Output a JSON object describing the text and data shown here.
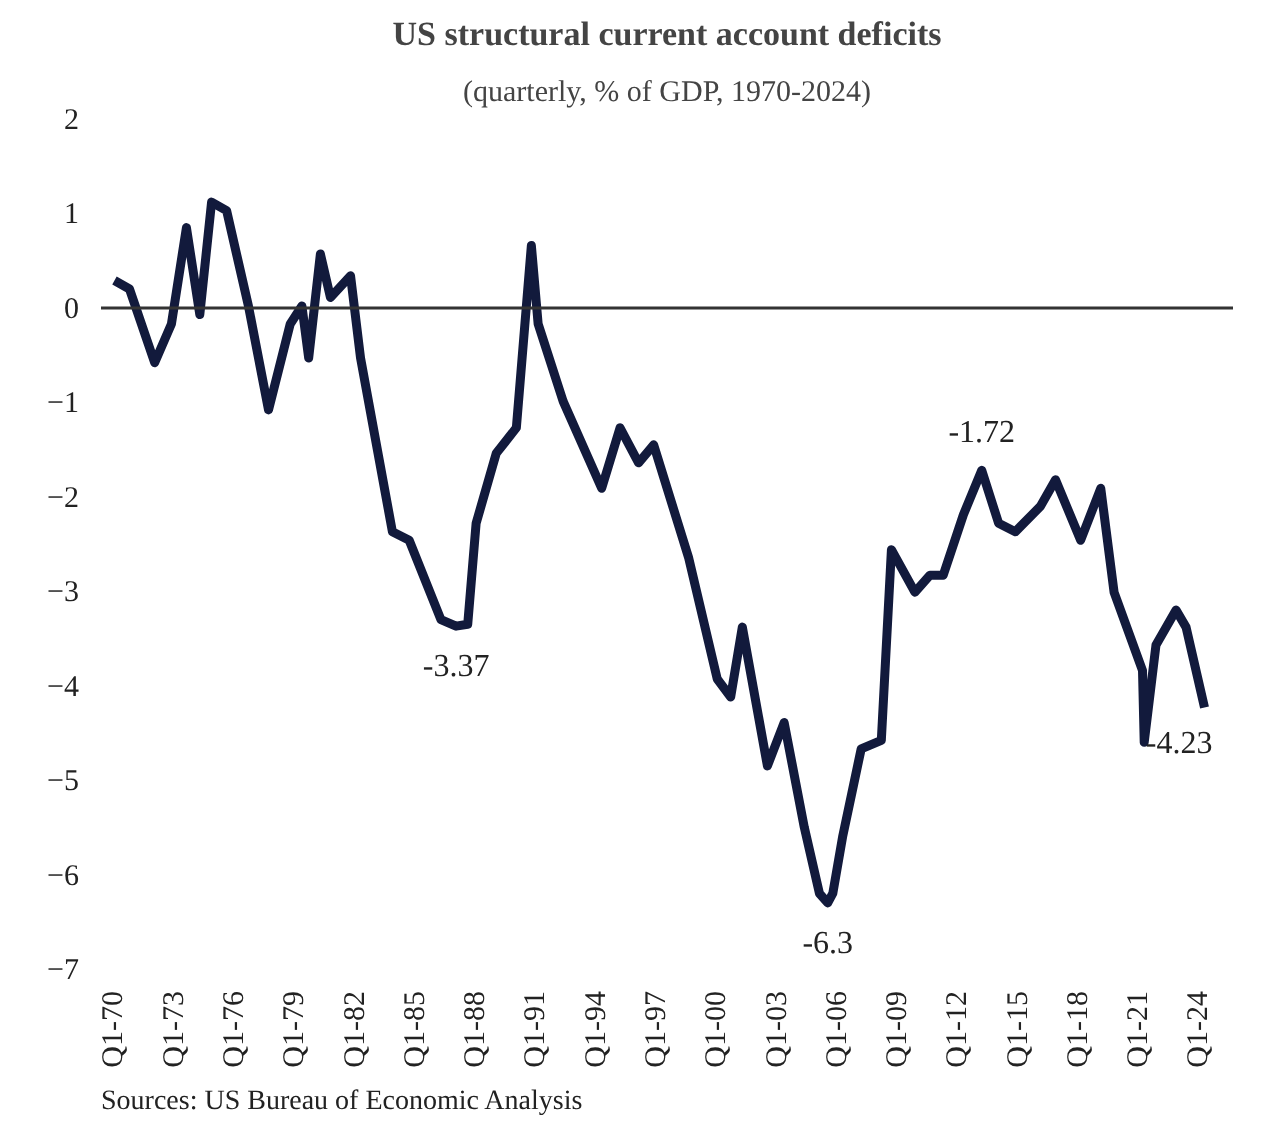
{
  "chart_data": {
    "type": "line",
    "title": "US structural current account deficits",
    "subtitle": "(quarterly, % of GDP, 1970-2024)",
    "x": [
      "1970-01",
      "1970-10",
      "1972-01",
      "1972-11",
      "1973-08",
      "1974-04",
      "1974-11",
      "1975-08",
      "1976-09",
      "1977-09",
      "1978-10",
      "1979-05",
      "1979-09",
      "1980-04",
      "1980-10",
      "1981-10",
      "1982-04",
      "1983-11",
      "1984-09",
      "1986-04",
      "1987-01",
      "1987-08",
      "1988-01",
      "1989-01",
      "1990-01",
      "1990-10",
      "1991-02",
      "1992-05",
      "1994-04",
      "1995-03",
      "1996-02",
      "1996-11",
      "1998-08",
      "2000-01",
      "2000-09",
      "2001-04",
      "2002-07",
      "2003-05",
      "2004-05",
      "2005-02",
      "2005-07",
      "2005-10",
      "2006-04",
      "2007-03",
      "2008-03",
      "2008-09",
      "2009-11",
      "2010-08",
      "2011-04",
      "2012-04",
      "2013-03",
      "2014-01",
      "2014-11",
      "2016-02",
      "2016-11",
      "2018-02",
      "2019-02",
      "2019-10",
      "2021-03",
      "2021-04",
      "2021-11",
      "2022-11",
      "2023-05",
      "2024-04"
    ],
    "series": [
      {
        "color": "#121a3c",
        "values": [
          0.29,
          0.2,
          -0.58,
          -0.17,
          0.85,
          -0.07,
          1.12,
          1.03,
          0.02,
          -1.08,
          -0.17,
          0.02,
          -0.53,
          0.57,
          0.11,
          0.34,
          -0.53,
          -2.37,
          -2.46,
          -3.3,
          -3.37,
          -3.35,
          -2.28,
          -1.54,
          -1.27,
          0.66,
          -0.17,
          -0.99,
          -1.91,
          -1.27,
          -1.64,
          -1.45,
          -2.65,
          -3.93,
          -4.12,
          -3.38,
          -4.85,
          -4.39,
          -5.5,
          -6.2,
          -6.3,
          -6.2,
          -5.59,
          -4.67,
          -4.58,
          -2.56,
          -3.01,
          -2.83,
          -2.83,
          -2.19,
          -1.72,
          -2.28,
          -2.37,
          -2.1,
          -1.82,
          -2.46,
          -1.91,
          -3.01,
          -3.84,
          -4.6,
          -3.57,
          -3.2,
          -3.38,
          -4.23
        ]
      }
    ],
    "xlim": [
      "1969-05",
      "2025-09"
    ],
    "ylim": [
      -7,
      2
    ],
    "xticks": [
      {
        "value": "1970-01",
        "label": "Q1-70"
      },
      {
        "value": "1973-01",
        "label": "Q1-73"
      },
      {
        "value": "1976-01",
        "label": "Q1-76"
      },
      {
        "value": "1979-01",
        "label": "Q1-79"
      },
      {
        "value": "1982-01",
        "label": "Q1-82"
      },
      {
        "value": "1985-01",
        "label": "Q1-85"
      },
      {
        "value": "1988-01",
        "label": "Q1-88"
      },
      {
        "value": "1991-01",
        "label": "Q1-91"
      },
      {
        "value": "1994-01",
        "label": "Q1-94"
      },
      {
        "value": "1997-01",
        "label": "Q1-97"
      },
      {
        "value": "2000-01",
        "label": "Q1-00"
      },
      {
        "value": "2003-01",
        "label": "Q1-03"
      },
      {
        "value": "2006-01",
        "label": "Q1-06"
      },
      {
        "value": "2009-01",
        "label": "Q1-09"
      },
      {
        "value": "2012-01",
        "label": "Q1-12"
      },
      {
        "value": "2015-01",
        "label": "Q1-15"
      },
      {
        "value": "2018-01",
        "label": "Q1-18"
      },
      {
        "value": "2021-01",
        "label": "Q1-21"
      },
      {
        "value": "2024-01",
        "label": "Q1-24"
      }
    ],
    "yticks": [
      -7,
      -6,
      -5,
      -4,
      -3,
      -2,
      -1,
      0,
      1,
      2
    ],
    "ref_lines": [
      {
        "axis": "y",
        "value": 0,
        "color": "#333333"
      }
    ],
    "annotations": [
      {
        "text": "-3.37",
        "x": "1987-01",
        "y": -3.37
      },
      {
        "text": "-6.3",
        "x": "2005-07",
        "y": -6.3
      },
      {
        "text": "-1.72",
        "x": "2013-03",
        "y": -1.72
      },
      {
        "text": "-4.23",
        "x": "2024-04",
        "y": -4.23
      },
      "Sources: US Bureau of Economic Analysis"
    ],
    "grid": false
  }
}
